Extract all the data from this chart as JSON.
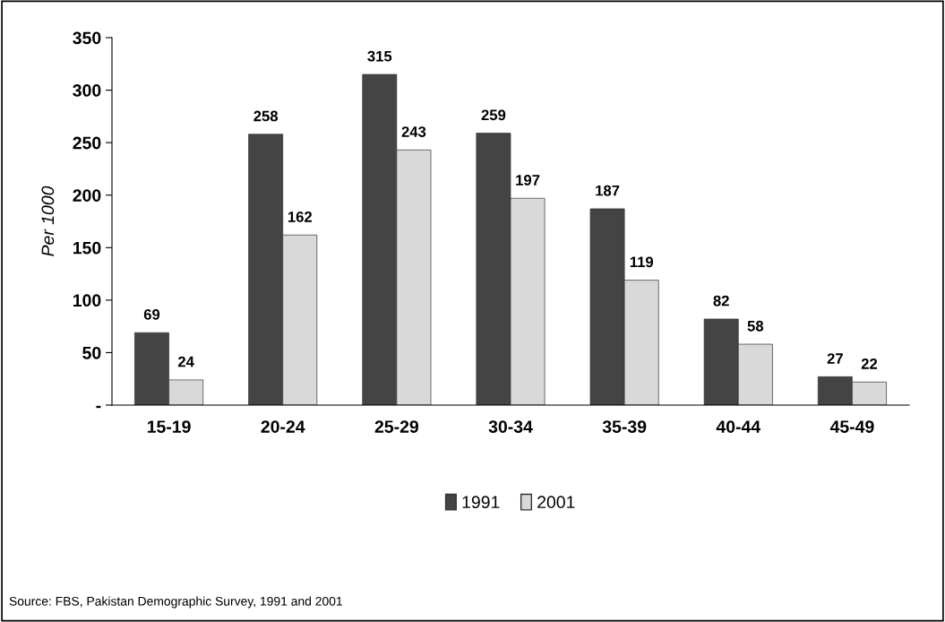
{
  "chart_data": {
    "type": "bar",
    "ylabel": "Per 1000",
    "categories": [
      "15-19",
      "20-24",
      "25-29",
      "30-34",
      "35-39",
      "40-44",
      "45-49"
    ],
    "series": [
      {
        "name": "1991",
        "color": "#444444",
        "values": [
          69,
          258,
          315,
          259,
          187,
          82,
          27
        ]
      },
      {
        "name": "2001",
        "color": "#d9d9d9",
        "values": [
          24,
          162,
          243,
          197,
          119,
          58,
          22
        ]
      }
    ],
    "ylim": [
      0,
      350
    ],
    "yticks": [
      {
        "value": 0,
        "label": "-"
      },
      50,
      100,
      150,
      200,
      250,
      300,
      350
    ],
    "data_labels": true,
    "grid": false,
    "legend": "bottom",
    "annotations": [
      "Source: FBS, Pakistan Demographic Survey, 1991 and 2001"
    ]
  }
}
